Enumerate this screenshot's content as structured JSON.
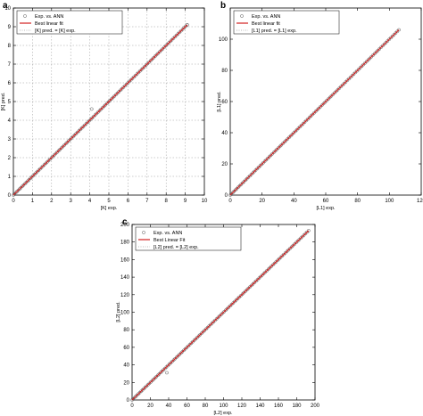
{
  "chart_data": [
    {
      "type": "scatter",
      "panel_label": "a",
      "xlabel": "[K] exp.",
      "ylabel": "[K] pred.",
      "xlim": [
        0,
        10
      ],
      "ylim": [
        0,
        10
      ],
      "xticks": [
        0,
        1,
        2,
        3,
        4,
        5,
        6,
        7,
        8,
        9,
        10
      ],
      "yticks": [
        0,
        1,
        2,
        3,
        4,
        5,
        6,
        7,
        8,
        9,
        10
      ],
      "grid": true,
      "legend_position": "top-left",
      "legend": [
        "Exp. vs. ANN",
        "Best linear fit",
        "[K] pred. = [K] exp."
      ],
      "series": [
        {
          "name": "Exp. vs. ANN",
          "kind": "markers",
          "range": [
            0,
            9.1
          ],
          "count": 120,
          "outliers": [
            {
              "x": 4.1,
              "y": 4.6
            },
            {
              "x": 9.1,
              "y": 9.1
            }
          ]
        },
        {
          "name": "Best linear fit",
          "kind": "line",
          "points": [
            [
              0,
              0
            ],
            [
              9.1,
              9.1
            ]
          ]
        },
        {
          "name": "[K] pred. = [K] exp.",
          "kind": "dashed",
          "points": [
            [
              0,
              0
            ],
            [
              9.1,
              9.1
            ]
          ]
        }
      ],
      "colors": {
        "markers": "#555555",
        "fit": "#d32020",
        "identity": "#777777"
      }
    },
    {
      "type": "scatter",
      "panel_label": "b",
      "xlabel": "[L1] exp.",
      "ylabel": "[L1] pred.",
      "xlim": [
        0,
        120
      ],
      "ylim": [
        0,
        120
      ],
      "xticks": [
        0,
        20,
        40,
        60,
        80,
        100,
        120
      ],
      "yticks": [
        0,
        20,
        40,
        60,
        80,
        100
      ],
      "grid": false,
      "legend_position": "top-left",
      "legend": [
        "Exp. vs. ANN",
        "Best linear fit",
        "[L1] pred. = [L1] exp."
      ],
      "series": [
        {
          "name": "Exp. vs. ANN",
          "kind": "markers",
          "range": [
            0,
            106
          ],
          "count": 110,
          "outliers": []
        },
        {
          "name": "Best linear fit",
          "kind": "line",
          "points": [
            [
              0,
              0
            ],
            [
              106,
              106
            ]
          ]
        },
        {
          "name": "[L1] pred. = [L1] exp.",
          "kind": "dashed",
          "points": [
            [
              0,
              0
            ],
            [
              106,
              106
            ]
          ]
        }
      ],
      "colors": {
        "markers": "#555555",
        "fit": "#d32020",
        "identity": "#777777"
      }
    },
    {
      "type": "scatter",
      "panel_label": "c",
      "xlabel": "[L2] exp.",
      "ylabel": "[L2] pred.",
      "xlim": [
        0,
        200
      ],
      "ylim": [
        0,
        200
      ],
      "xticks": [
        0,
        20,
        40,
        60,
        80,
        100,
        120,
        140,
        160,
        180,
        200
      ],
      "yticks": [
        0,
        20,
        40,
        60,
        80,
        100,
        120,
        140,
        160,
        180,
        200
      ],
      "grid": false,
      "legend_position": "top-left",
      "legend": [
        "Exp. vs. ANN",
        "Best Linear Fit",
        "[L2] pred. = [L2] exp."
      ],
      "series": [
        {
          "name": "Exp. vs. ANN",
          "kind": "markers",
          "range": [
            0,
            193
          ],
          "count": 120,
          "outliers": [
            {
              "x": 38,
              "y": 31
            }
          ]
        },
        {
          "name": "Best Linear Fit",
          "kind": "line",
          "points": [
            [
              0,
              0
            ],
            [
              193,
              193
            ]
          ]
        },
        {
          "name": "[L2] pred. = [L2] exp.",
          "kind": "dashed",
          "points": [
            [
              0,
              0
            ],
            [
              193,
              193
            ]
          ]
        }
      ],
      "colors": {
        "markers": "#555555",
        "fit": "#d32020",
        "identity": "#777777"
      }
    }
  ]
}
